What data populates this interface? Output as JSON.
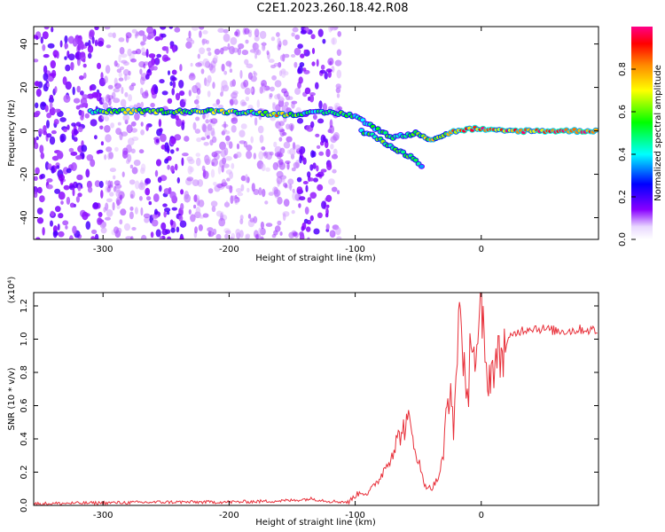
{
  "title": "C2E1.2023.260.18.42.R08",
  "chart_data": [
    {
      "type": "heatmap",
      "xlabel": "Height of straight line (km)",
      "ylabel": "Frequency (Hz)",
      "xlim": [
        -355,
        93
      ],
      "ylim": [
        -50,
        48
      ],
      "xticks": [
        -300,
        -200,
        -100,
        0
      ],
      "yticks": [
        -40,
        -20,
        0,
        20,
        40
      ],
      "colorbar": {
        "label": "Normalized spectral amplitude",
        "range": [
          0.0,
          1.0
        ],
        "ticks": [
          "0.0",
          "0.2",
          "0.4",
          "0.6",
          "0.8"
        ],
        "colormap": [
          "#ffffff",
          "#8800ff",
          "#0000ff",
          "#00ffff",
          "#00ff00",
          "#ffff00",
          "#ff8800",
          "#ff0000",
          "#ff0088"
        ]
      },
      "ridge": [
        {
          "x": -310,
          "y": 9,
          "a": 0.5
        },
        {
          "x": -280,
          "y": 9,
          "a": 0.75
        },
        {
          "x": -260,
          "y": 9,
          "a": 0.65
        },
        {
          "x": -235,
          "y": 9,
          "a": 0.6
        },
        {
          "x": -210,
          "y": 9,
          "a": 0.7
        },
        {
          "x": -180,
          "y": 8.5,
          "a": 0.55
        },
        {
          "x": -160,
          "y": 7.5,
          "a": 0.85
        },
        {
          "x": -140,
          "y": 8,
          "a": 0.45
        },
        {
          "x": -120,
          "y": 8.5,
          "a": 0.6
        },
        {
          "x": -100,
          "y": 7,
          "a": 0.5
        },
        {
          "x": -90,
          "y": 3,
          "a": 0.5
        },
        {
          "x": -80,
          "y": 0,
          "a": 0.55
        },
        {
          "x": -70,
          "y": -3,
          "a": 0.55
        },
        {
          "x": -60,
          "y": -2,
          "a": 0.5
        },
        {
          "x": -50,
          "y": -1,
          "a": 0.6
        },
        {
          "x": -40,
          "y": -4,
          "a": 0.75
        },
        {
          "x": -30,
          "y": -2,
          "a": 0.6
        },
        {
          "x": -20,
          "y": 0,
          "a": 0.85
        },
        {
          "x": -5,
          "y": 1,
          "a": 0.9
        },
        {
          "x": 10,
          "y": 0,
          "a": 0.9
        },
        {
          "x": 40,
          "y": 0,
          "a": 0.9
        },
        {
          "x": 93,
          "y": 0,
          "a": 0.9
        }
      ],
      "secondary_branch": [
        {
          "x": -95,
          "y": 0,
          "a": 0.5
        },
        {
          "x": -80,
          "y": -4,
          "a": 0.6
        },
        {
          "x": -70,
          "y": -8,
          "a": 0.55
        },
        {
          "x": -60,
          "y": -11,
          "a": 0.6
        },
        {
          "x": -52,
          "y": -13,
          "a": 0.65
        },
        {
          "x": -45,
          "y": -18,
          "a": 0.3
        }
      ]
    },
    {
      "type": "line",
      "xlabel": "Height of straight line (km)",
      "ylabel": "SNR (10 * v/v)",
      "multiplier": "(x10⁴)",
      "xlim": [
        -355,
        93
      ],
      "ylim": [
        0,
        1.28
      ],
      "xticks": [
        -300,
        -200,
        -100,
        0
      ],
      "yticks": [
        0.0,
        0.2,
        0.4,
        0.6,
        0.8,
        1.0,
        1.2
      ],
      "color": "#e8303a",
      "series": [
        {
          "x": [
            -355,
            -300,
            -250,
            -200,
            -170,
            -150,
            -135,
            -120,
            -105,
            -100,
            -95,
            -90,
            -85,
            -80,
            -75,
            -70,
            -65,
            -60,
            -57,
            -55,
            -52,
            -50,
            -48,
            -45,
            -42,
            -40,
            -35,
            -30,
            -28,
            -25,
            -22,
            -20,
            -18,
            -15,
            -12,
            -10,
            -8,
            -5,
            -2,
            0,
            3,
            5,
            8,
            10,
            15,
            20,
            25,
            30,
            35,
            40,
            50,
            60,
            70,
            80,
            93
          ],
          "y": [
            0.01,
            0.015,
            0.02,
            0.02,
            0.025,
            0.03,
            0.04,
            0.025,
            0.02,
            0.06,
            0.08,
            0.07,
            0.12,
            0.17,
            0.25,
            0.33,
            0.42,
            0.48,
            0.5,
            0.42,
            0.35,
            0.28,
            0.2,
            0.13,
            0.11,
            0.1,
            0.15,
            0.28,
            0.55,
            0.7,
            0.45,
            0.75,
            1.2,
            1.05,
            0.55,
            0.7,
            1.15,
            0.85,
            0.95,
            1.25,
            0.82,
            0.78,
            0.8,
            0.85,
            0.9,
            0.98,
            1.02,
            1.05,
            1.06,
            1.07,
            1.06,
            1.05,
            1.05,
            1.06,
            1.05
          ]
        }
      ]
    }
  ]
}
